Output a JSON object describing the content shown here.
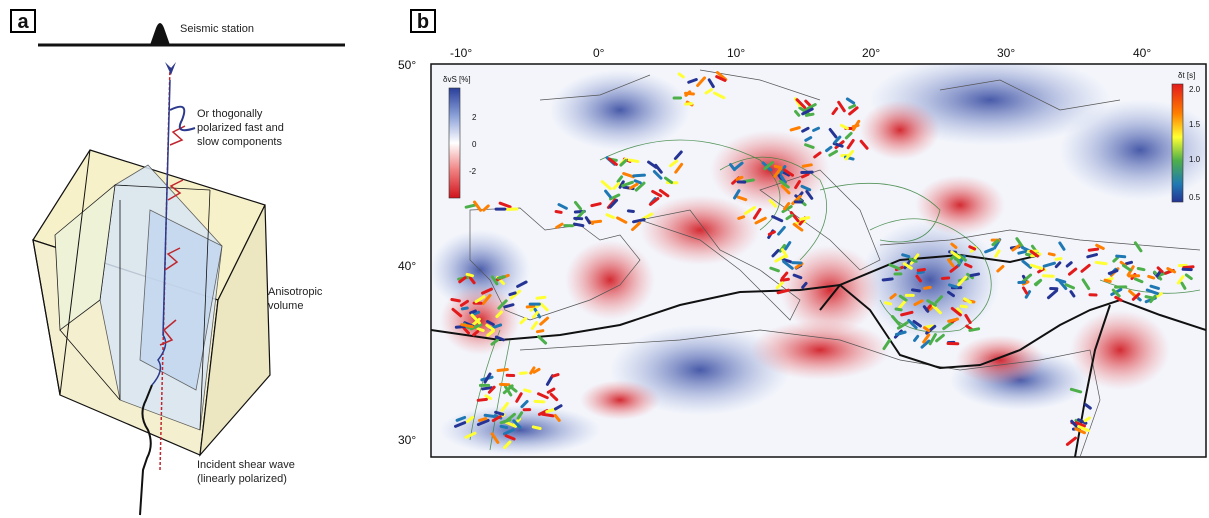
{
  "panel_a": {
    "label": "a",
    "station_label": "Seismic station",
    "components_label": [
      "Or thogonally",
      "polarized fast and",
      "slow components"
    ],
    "volume_label": [
      "Anisotropic",
      "volume"
    ],
    "incident_label": [
      "Incident shear wave",
      "(linearly polarized)"
    ]
  },
  "panel_b": {
    "label": "b",
    "lon_ticks": [
      "-10°",
      "0°",
      "10°",
      "20°",
      "30°",
      "40°"
    ],
    "lat_ticks": [
      "50°",
      "40°",
      "30°"
    ],
    "colorbar_left": {
      "title": "δvS [%]",
      "ticks": [
        "2",
        "0",
        "-2"
      ],
      "colors": [
        "#2a3f9a",
        "#8aa0d8",
        "#ffffff",
        "#f08080",
        "#d0141c"
      ]
    },
    "colorbar_right": {
      "title": "δt [s]",
      "ticks": [
        "2.0",
        "1.5",
        "1.0",
        "0.5"
      ],
      "colors": [
        "#e31a1c",
        "#ff7f00",
        "#ffff33",
        "#4daf4a",
        "#1f78b4",
        "#253494"
      ]
    }
  }
}
